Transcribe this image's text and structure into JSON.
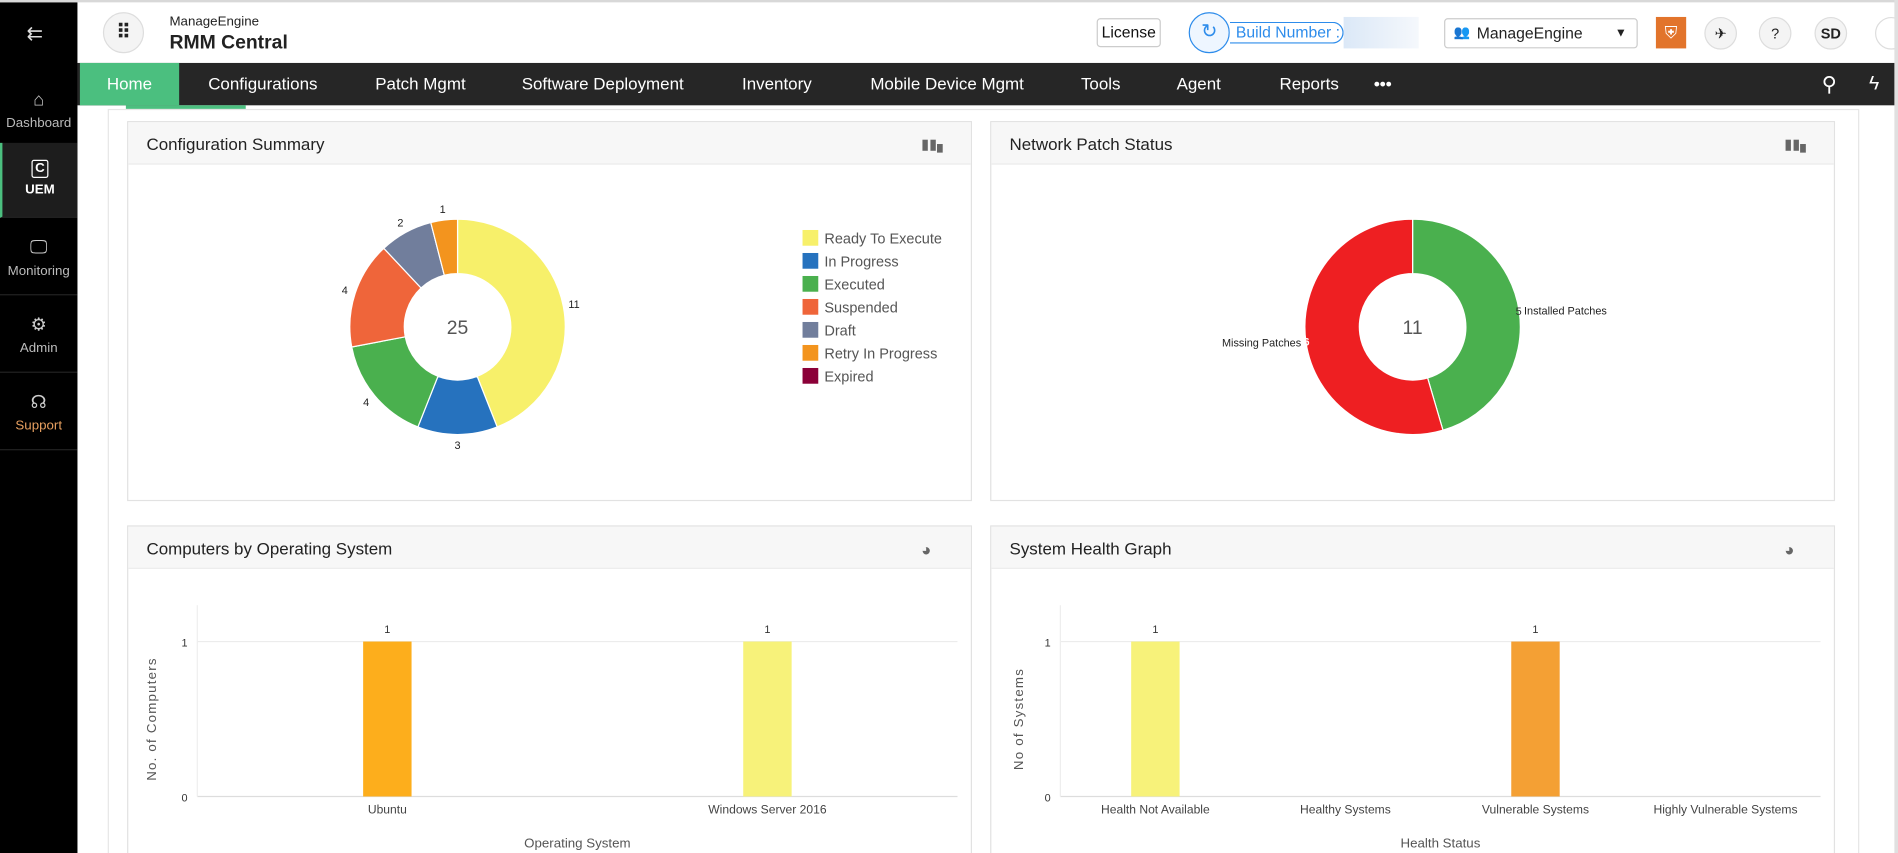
{
  "app": {
    "brand_small": "ManageEngine",
    "brand_title": "RMM Central"
  },
  "sidebar": {
    "items": [
      {
        "label": "Dashboard",
        "icon": "home-icon"
      },
      {
        "label": "UEM",
        "icon": "uem-icon",
        "active": true
      },
      {
        "label": "Monitoring",
        "icon": "monitor-icon"
      },
      {
        "label": "Admin",
        "icon": "admin-gear-icon"
      },
      {
        "label": "Support",
        "icon": "headset-icon"
      }
    ]
  },
  "header": {
    "license": "License",
    "build_label": "Build Number :",
    "org_select": "ManageEngine",
    "avatar": "SD"
  },
  "nav": {
    "items": [
      "Home",
      "Configurations",
      "Patch Mgmt",
      "Software Deployment",
      "Inventory",
      "Mobile Device Mgmt",
      "Tools",
      "Agent",
      "Reports"
    ],
    "more": "•••",
    "active": "Home"
  },
  "colors": {
    "accent": "#4bbf7f",
    "nav_bg": "#262626",
    "shield": "#e2742b"
  },
  "cards": {
    "config": {
      "title": "Configuration Summary"
    },
    "patch": {
      "title": "Network Patch Status"
    },
    "os": {
      "title": "Computers by Operating System"
    },
    "health": {
      "title": "System Health Graph"
    }
  },
  "chart_data": [
    {
      "type": "pie",
      "title": "Configuration Summary",
      "donut": true,
      "center_label": "25",
      "categories": [
        "Ready To Execute",
        "In Progress",
        "Executed",
        "Suspended",
        "Draft",
        "Retry In Progress",
        "Expired"
      ],
      "values": [
        11,
        3,
        4,
        4,
        2,
        1,
        0
      ],
      "colors": [
        "#f7f06a",
        "#2672be",
        "#4ab04e",
        "#ef653a",
        "#717e9c",
        "#f3941e",
        "#8b0038"
      ],
      "legend": "right"
    },
    {
      "type": "pie",
      "title": "Network Patch Status",
      "donut": true,
      "center_label": "11",
      "categories": [
        "Installed Patches",
        "Missing Patches"
      ],
      "values": [
        5,
        6
      ],
      "colors": [
        "#4ab04e",
        "#ee1f22"
      ]
    },
    {
      "type": "bar",
      "title": "Computers by Operating System",
      "categories": [
        "Ubuntu",
        "Windows Server 2016"
      ],
      "values": [
        1,
        1
      ],
      "colors": [
        "#fdae1c",
        "#f7f27a"
      ],
      "xlabel": "Operating System",
      "ylabel": "No. of Computers",
      "ylim": [
        0,
        1
      ],
      "yticks": [
        "0",
        "1"
      ],
      "grid": true
    },
    {
      "type": "bar",
      "title": "System Health Graph",
      "categories": [
        "Health Not Available",
        "Healthy Systems",
        "Vulnerable Systems",
        "Highly Vulnerable Systems"
      ],
      "values": [
        1,
        0,
        1,
        0
      ],
      "colors": [
        "#f7f27a",
        "#4ab04e",
        "#f4a034",
        "#ee1f22"
      ],
      "xlabel": "Health Status",
      "ylabel": "No of Systems",
      "ylim": [
        0,
        1
      ],
      "yticks": [
        "0",
        "1"
      ],
      "grid": true
    }
  ]
}
